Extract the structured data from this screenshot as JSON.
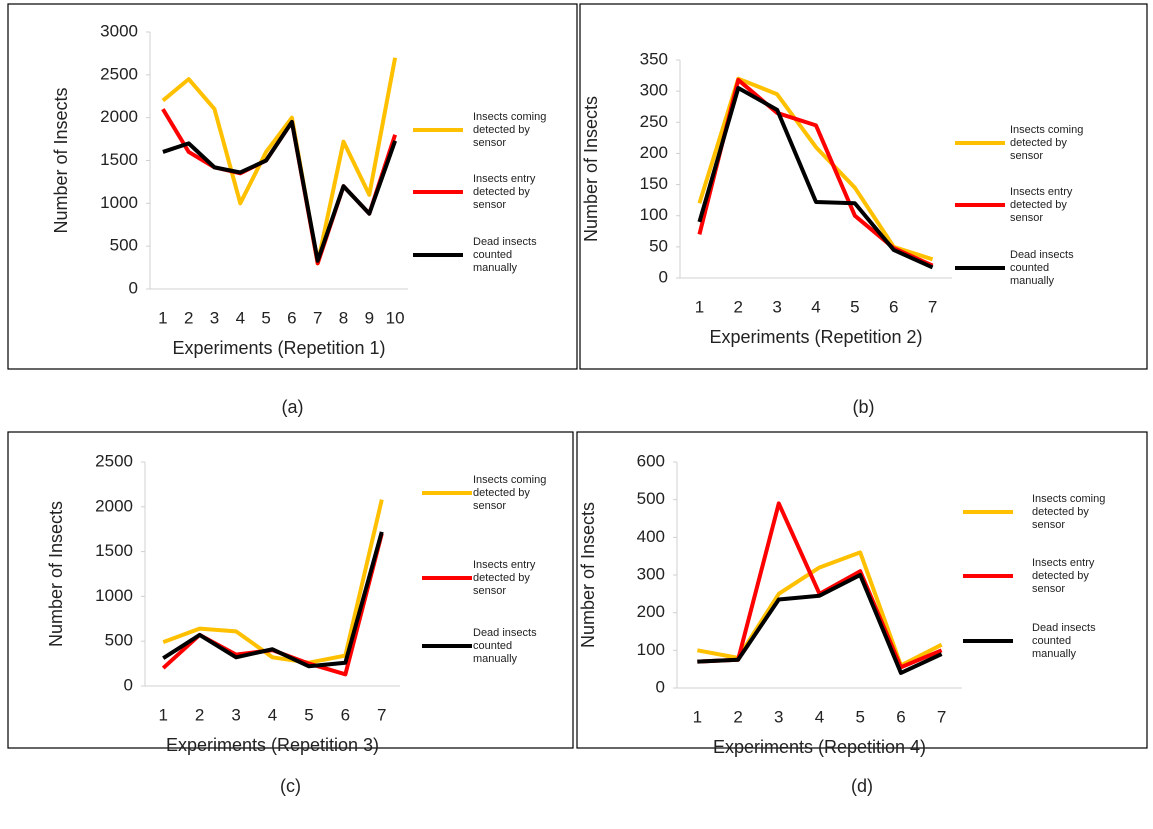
{
  "chart_data": [
    {
      "type": "line",
      "caption": "(a)",
      "x_label": "Experiments (Repetition 1)",
      "y_label": "Number of Insects",
      "categories": [
        "1",
        "2",
        "3",
        "4",
        "5",
        "6",
        "7",
        "8",
        "9",
        "10"
      ],
      "ylim": [
        0,
        3000
      ],
      "yticks": [
        0,
        500,
        1000,
        1500,
        2000,
        2500,
        3000
      ],
      "series": [
        {
          "name": "Insects coming detected by sensor",
          "color": "#ffc000",
          "values": [
            2200,
            2450,
            2100,
            1000,
            1600,
            2000,
            300,
            1720,
            1100,
            2700
          ]
        },
        {
          "name": "Insects entry detected by sensor",
          "color": "#ff0000",
          "values": [
            2100,
            1600,
            1420,
            1350,
            1500,
            1950,
            300,
            1200,
            880,
            1800
          ]
        },
        {
          "name": "Dead insects counted manually",
          "color": "#000000",
          "values": [
            1600,
            1700,
            1420,
            1360,
            1500,
            1950,
            330,
            1200,
            880,
            1730
          ]
        }
      ]
    },
    {
      "type": "line",
      "caption": "(b)",
      "x_label": "Experiments (Repetition 2)",
      "y_label": "Number of  Insects",
      "categories": [
        "1",
        "2",
        "3",
        "4",
        "5",
        "6",
        "7"
      ],
      "ylim": [
        0,
        350
      ],
      "yticks": [
        0,
        50,
        100,
        150,
        200,
        250,
        300,
        350
      ],
      "series": [
        {
          "name": "Insects coming detected by sensor",
          "color": "#ffc000",
          "values": [
            120,
            320,
            295,
            210,
            145,
            50,
            30
          ]
        },
        {
          "name": "Insects entry detected by sensor",
          "color": "#ff0000",
          "values": [
            70,
            318,
            265,
            245,
            100,
            48,
            20
          ]
        },
        {
          "name": "Dead insects counted manually",
          "color": "#000000",
          "values": [
            90,
            305,
            270,
            122,
            120,
            45,
            17
          ]
        }
      ]
    },
    {
      "type": "line",
      "caption": "(c)",
      "x_label": "Experiments (Repetition 3)",
      "y_label": "Number of Insects",
      "categories": [
        "1",
        "2",
        "3",
        "4",
        "5",
        "6",
        "7"
      ],
      "ylim": [
        0,
        2500
      ],
      "yticks": [
        0,
        500,
        1000,
        1500,
        2000,
        2500
      ],
      "series": [
        {
          "name": "Insects coming detected by sensor",
          "color": "#ffc000",
          "values": [
            490,
            640,
            610,
            320,
            260,
            340,
            2080
          ]
        },
        {
          "name": "Insects entry detected by sensor",
          "color": "#ff0000",
          "values": [
            200,
            570,
            350,
            400,
            250,
            130,
            1700
          ]
        },
        {
          "name": "Dead insects counted manually",
          "color": "#000000",
          "values": [
            310,
            570,
            320,
            410,
            220,
            260,
            1720
          ]
        }
      ]
    },
    {
      "type": "line",
      "caption": "(d)",
      "x_label": "Experiments (Repetition 4)",
      "y_label": "Number of Insects",
      "categories": [
        "1",
        "2",
        "3",
        "4",
        "5",
        "6",
        "7"
      ],
      "ylim": [
        0,
        600
      ],
      "yticks": [
        0,
        100,
        200,
        300,
        400,
        500,
        600
      ],
      "series": [
        {
          "name": "Insects coming detected by sensor",
          "color": "#ffc000",
          "values": [
            100,
            80,
            250,
            320,
            360,
            60,
            115
          ]
        },
        {
          "name": "Insects entry detected by sensor",
          "color": "#ff0000",
          "values": [
            70,
            75,
            490,
            250,
            310,
            55,
            100
          ]
        },
        {
          "name": "Dead insects counted manually",
          "color": "#000000",
          "values": [
            70,
            75,
            235,
            245,
            300,
            40,
            90
          ]
        }
      ]
    }
  ]
}
